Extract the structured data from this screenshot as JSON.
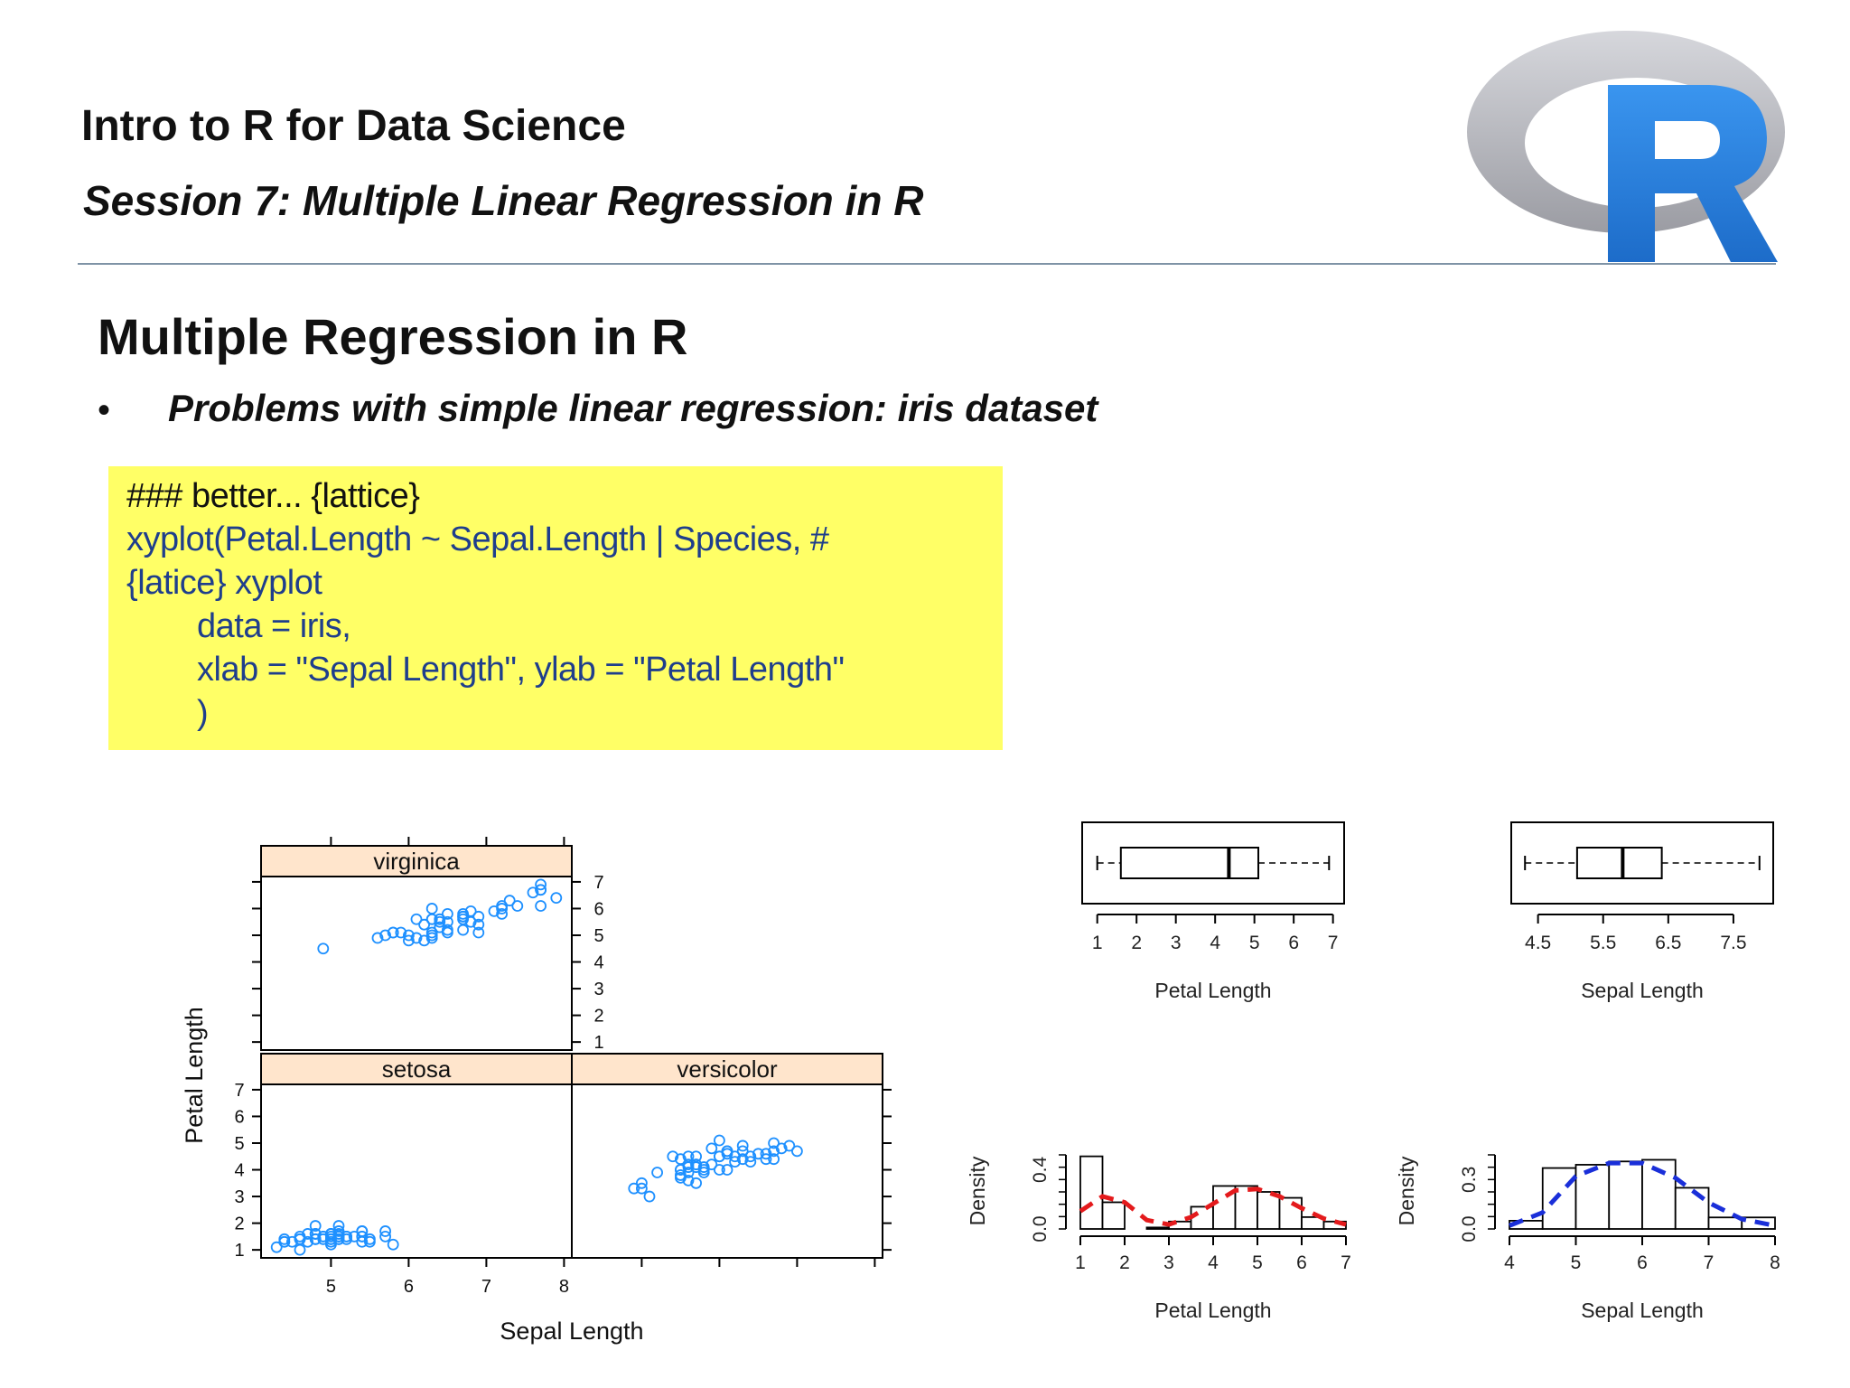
{
  "header": {
    "course_title": "Intro to R for Data Science",
    "session_title": "Session 7: Multiple Linear Regression in R",
    "logo_letter": "R"
  },
  "slide": {
    "heading": "Multiple Regression in R",
    "bullet_marker": "•",
    "bullet_text": "Problems with simple linear regression: iris dataset"
  },
  "code": {
    "lines": [
      "### better... {lattice}",
      "xyplot(Petal.Length ~ Sepal.Length | Species, #",
      "{latice} xyplot",
      "data = iris,",
      "xlab = \"Sepal Length\", ylab = \"Petal Length\"",
      ")"
    ]
  },
  "colors": {
    "code_bg": "#ffff66",
    "code_text": "#1f3e8c",
    "strip_bg": "#ffe5cc",
    "point": "#1e90ff",
    "logo_blue": "#2a7fd8",
    "logo_ring": "#b8b9bf",
    "density_red": "#e41a1c",
    "density_blue": "#1a2fd9"
  },
  "chart_data": [
    {
      "type": "scatter",
      "title": "",
      "xlabel": "Sepal Length",
      "ylabel": "Petal Length",
      "xlim": [
        4.1,
        8.1
      ],
      "ylim": [
        0.7,
        7.2
      ],
      "x_ticks": [
        "5",
        "6",
        "7",
        "8"
      ],
      "y_ticks": [
        "1",
        "2",
        "3",
        "4",
        "5",
        "6",
        "7"
      ],
      "panels": [
        {
          "name": "virginica",
          "points": [
            [
              6.3,
              6.0
            ],
            [
              5.8,
              5.1
            ],
            [
              7.1,
              5.9
            ],
            [
              6.3,
              5.6
            ],
            [
              6.5,
              5.8
            ],
            [
              7.6,
              6.6
            ],
            [
              4.9,
              4.5
            ],
            [
              7.3,
              6.3
            ],
            [
              6.7,
              5.8
            ],
            [
              7.2,
              6.1
            ],
            [
              6.5,
              5.1
            ],
            [
              6.4,
              5.3
            ],
            [
              6.8,
              5.5
            ],
            [
              5.7,
              5.0
            ],
            [
              5.8,
              5.1
            ],
            [
              6.4,
              5.3
            ],
            [
              6.5,
              5.5
            ],
            [
              7.7,
              6.7
            ],
            [
              7.7,
              6.9
            ],
            [
              6.0,
              5.0
            ],
            [
              6.9,
              5.7
            ],
            [
              5.6,
              4.9
            ],
            [
              7.7,
              6.7
            ],
            [
              6.3,
              4.9
            ],
            [
              6.7,
              5.7
            ],
            [
              7.2,
              6.0
            ],
            [
              6.2,
              4.8
            ],
            [
              6.1,
              4.9
            ],
            [
              6.4,
              5.6
            ],
            [
              7.2,
              5.8
            ],
            [
              7.4,
              6.1
            ],
            [
              7.9,
              6.4
            ],
            [
              6.4,
              5.6
            ],
            [
              6.3,
              5.1
            ],
            [
              6.1,
              5.6
            ],
            [
              7.7,
              6.1
            ],
            [
              6.3,
              5.6
            ],
            [
              6.4,
              5.5
            ],
            [
              6.0,
              4.8
            ],
            [
              6.9,
              5.4
            ],
            [
              6.7,
              5.6
            ],
            [
              6.9,
              5.1
            ],
            [
              6.8,
              5.9
            ],
            [
              6.7,
              5.7
            ],
            [
              6.7,
              5.2
            ],
            [
              6.3,
              5.0
            ],
            [
              6.5,
              5.2
            ],
            [
              6.2,
              5.4
            ],
            [
              5.9,
              5.1
            ]
          ]
        },
        {
          "name": "setosa",
          "points": [
            [
              5.1,
              1.4
            ],
            [
              4.9,
              1.4
            ],
            [
              4.7,
              1.3
            ],
            [
              4.6,
              1.5
            ],
            [
              5.0,
              1.4
            ],
            [
              5.4,
              1.7
            ],
            [
              4.6,
              1.4
            ],
            [
              5.0,
              1.5
            ],
            [
              4.4,
              1.4
            ],
            [
              4.9,
              1.5
            ],
            [
              5.4,
              1.5
            ],
            [
              4.8,
              1.6
            ],
            [
              4.8,
              1.4
            ],
            [
              4.3,
              1.1
            ],
            [
              5.8,
              1.2
            ],
            [
              5.7,
              1.5
            ],
            [
              5.4,
              1.3
            ],
            [
              5.1,
              1.4
            ],
            [
              5.7,
              1.7
            ],
            [
              5.1,
              1.5
            ],
            [
              5.4,
              1.7
            ],
            [
              5.1,
              1.5
            ],
            [
              4.6,
              1.0
            ],
            [
              5.1,
              1.7
            ],
            [
              4.8,
              1.9
            ],
            [
              5.0,
              1.6
            ],
            [
              5.0,
              1.6
            ],
            [
              5.2,
              1.5
            ],
            [
              5.2,
              1.4
            ],
            [
              4.7,
              1.6
            ],
            [
              4.8,
              1.6
            ],
            [
              5.4,
              1.5
            ],
            [
              5.2,
              1.5
            ],
            [
              5.5,
              1.4
            ],
            [
              4.9,
              1.5
            ],
            [
              5.0,
              1.2
            ],
            [
              5.5,
              1.3
            ],
            [
              4.4,
              1.3
            ],
            [
              5.1,
              1.5
            ],
            [
              5.0,
              1.3
            ],
            [
              4.5,
              1.3
            ],
            [
              4.4,
              1.3
            ],
            [
              5.0,
              1.6
            ],
            [
              5.1,
              1.9
            ],
            [
              4.8,
              1.4
            ],
            [
              5.1,
              1.6
            ],
            [
              4.6,
              1.4
            ],
            [
              5.3,
              1.5
            ],
            [
              5.0,
              1.4
            ]
          ]
        },
        {
          "name": "versicolor",
          "points": [
            [
              7.0,
              4.7
            ],
            [
              6.4,
              4.5
            ],
            [
              6.9,
              4.9
            ],
            [
              5.5,
              4.0
            ],
            [
              6.5,
              4.6
            ],
            [
              5.7,
              4.5
            ],
            [
              6.3,
              4.7
            ],
            [
              4.9,
              3.3
            ],
            [
              6.6,
              4.6
            ],
            [
              5.2,
              3.9
            ],
            [
              5.0,
              3.5
            ],
            [
              5.9,
              4.2
            ],
            [
              6.0,
              4.0
            ],
            [
              6.1,
              4.7
            ],
            [
              5.6,
              3.6
            ],
            [
              6.7,
              4.4
            ],
            [
              5.6,
              4.5
            ],
            [
              5.8,
              4.1
            ],
            [
              6.2,
              4.5
            ],
            [
              5.6,
              3.9
            ],
            [
              5.9,
              4.8
            ],
            [
              6.1,
              4.0
            ],
            [
              6.3,
              4.9
            ],
            [
              6.1,
              4.7
            ],
            [
              6.4,
              4.3
            ],
            [
              6.6,
              4.4
            ],
            [
              6.8,
              4.8
            ],
            [
              6.7,
              5.0
            ],
            [
              6.0,
              4.5
            ],
            [
              5.7,
              3.5
            ],
            [
              5.5,
              3.8
            ],
            [
              5.5,
              3.7
            ],
            [
              5.8,
              3.9
            ],
            [
              6.0,
              5.1
            ],
            [
              5.4,
              4.5
            ],
            [
              6.0,
              4.5
            ],
            [
              6.7,
              4.7
            ],
            [
              6.3,
              4.4
            ],
            [
              5.6,
              4.1
            ],
            [
              5.5,
              4.0
            ],
            [
              5.5,
              4.4
            ],
            [
              6.1,
              4.6
            ],
            [
              5.8,
              4.0
            ],
            [
              5.0,
              3.3
            ],
            [
              5.6,
              4.2
            ],
            [
              5.7,
              4.2
            ],
            [
              5.7,
              4.2
            ],
            [
              6.2,
              4.3
            ],
            [
              5.1,
              3.0
            ],
            [
              5.7,
              4.1
            ]
          ]
        }
      ]
    },
    {
      "type": "box",
      "xlabel": "Petal Length",
      "xlim": [
        0.8,
        7.1
      ],
      "x_ticks": [
        "1",
        "2",
        "3",
        "4",
        "5",
        "6",
        "7"
      ],
      "stats": {
        "min": 1.0,
        "q1": 1.6,
        "median": 4.35,
        "q3": 5.1,
        "max": 6.9
      }
    },
    {
      "type": "box",
      "xlabel": "Sepal Length",
      "xlim": [
        4.2,
        8.0
      ],
      "x_ticks": [
        "4.5",
        "5.5",
        "6.5",
        "7.5"
      ],
      "stats": {
        "min": 4.3,
        "q1": 5.1,
        "median": 5.8,
        "q3": 6.4,
        "max": 7.9
      }
    },
    {
      "type": "bar",
      "xlabel": "Petal Length",
      "ylabel": "Density",
      "xlim": [
        1,
        7
      ],
      "ylim": [
        0,
        0.5
      ],
      "x_ticks": [
        "1",
        "2",
        "3",
        "4",
        "5",
        "6",
        "7"
      ],
      "y_ticks": [
        "0.0",
        "0.4"
      ],
      "bin_edges": [
        1,
        1.5,
        2,
        2.5,
        3,
        3.5,
        4,
        4.5,
        5,
        5.5,
        6,
        6.5,
        7
      ],
      "values": [
        0.49,
        0.18,
        0.0,
        0.01,
        0.05,
        0.15,
        0.29,
        0.29,
        0.25,
        0.21,
        0.08,
        0.05
      ],
      "density_curve": {
        "x": [
          1,
          1.5,
          2,
          2.5,
          3,
          3.5,
          4,
          4.5,
          5,
          5.5,
          6,
          6.5,
          7
        ],
        "y": [
          0.12,
          0.22,
          0.18,
          0.06,
          0.03,
          0.08,
          0.17,
          0.26,
          0.27,
          0.22,
          0.14,
          0.07,
          0.03
        ]
      }
    },
    {
      "type": "bar",
      "xlabel": "Sepal Length",
      "ylabel": "Density",
      "xlim": [
        4,
        8
      ],
      "ylim": [
        0,
        0.45
      ],
      "x_ticks": [
        "4",
        "5",
        "6",
        "7",
        "8"
      ],
      "y_ticks": [
        "0.0",
        "0.3"
      ],
      "bin_edges": [
        4,
        4.5,
        5,
        5.5,
        6,
        6.5,
        7,
        7.5,
        8
      ],
      "values": [
        0.05,
        0.37,
        0.39,
        0.41,
        0.42,
        0.25,
        0.07,
        0.07
      ],
      "density_curve": {
        "x": [
          4,
          4.5,
          5,
          5.5,
          6,
          6.5,
          7,
          7.5,
          8
        ],
        "y": [
          0.02,
          0.1,
          0.32,
          0.4,
          0.4,
          0.31,
          0.16,
          0.06,
          0.02
        ]
      }
    }
  ]
}
